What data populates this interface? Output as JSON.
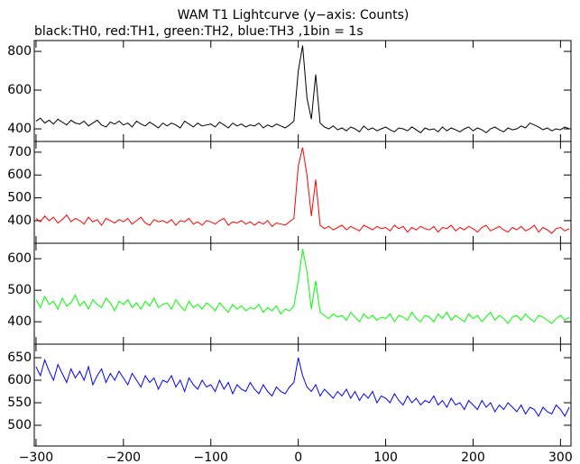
{
  "chart_data": {
    "type": "line",
    "title": "WAM T1 Lightcurve (y−axis: Counts)",
    "subtitle": "black:TH0, red:TH1, green:TH2, blue:TH3 ,1bin = 1s",
    "x": [
      -300,
      -295,
      -290,
      -285,
      -280,
      -275,
      -270,
      -265,
      -260,
      -255,
      -250,
      -245,
      -240,
      -235,
      -230,
      -225,
      -220,
      -215,
      -210,
      -205,
      -200,
      -195,
      -190,
      -185,
      -180,
      -175,
      -170,
      -165,
      -160,
      -155,
      -150,
      -145,
      -140,
      -135,
      -130,
      -125,
      -120,
      -115,
      -110,
      -105,
      -100,
      -95,
      -90,
      -85,
      -80,
      -75,
      -70,
      -65,
      -60,
      -55,
      -50,
      -45,
      -40,
      -35,
      -30,
      -25,
      -20,
      -15,
      -10,
      -5,
      0,
      5,
      10,
      15,
      20,
      25,
      30,
      35,
      40,
      45,
      50,
      55,
      60,
      65,
      70,
      75,
      80,
      85,
      90,
      95,
      100,
      105,
      110,
      115,
      120,
      125,
      130,
      135,
      140,
      145,
      150,
      155,
      160,
      165,
      170,
      175,
      180,
      185,
      190,
      195,
      200,
      205,
      210,
      215,
      220,
      225,
      230,
      235,
      240,
      245,
      250,
      255,
      260,
      265,
      270,
      275,
      280,
      285,
      290,
      295,
      300,
      305,
      310
    ],
    "xlim": [
      -302,
      312
    ],
    "xticks": [
      {
        "value": -300,
        "label": "−300"
      },
      {
        "value": -200,
        "label": "−200"
      },
      {
        "value": -100,
        "label": "−100"
      },
      0,
      100,
      200,
      300
    ],
    "series": [
      {
        "color": "#000000",
        "ylim": [
          335,
          856
        ],
        "yticks": [
          400,
          600,
          800
        ],
        "values": [
          440,
          455,
          430,
          445,
          425,
          450,
          435,
          420,
          445,
          430,
          425,
          440,
          415,
          430,
          445,
          420,
          410,
          435,
          425,
          440,
          420,
          430,
          410,
          440,
          425,
          415,
          435,
          420,
          405,
          430,
          415,
          430,
          420,
          405,
          440,
          425,
          410,
          430,
          415,
          420,
          425,
          410,
          435,
          420,
          405,
          430,
          415,
          425,
          410,
          420,
          415,
          430,
          405,
          420,
          410,
          425,
          415,
          405,
          420,
          440,
          700,
          830,
          560,
          450,
          680,
          430,
          410,
          400,
          415,
          395,
          405,
          390,
          410,
          400,
          385,
          415,
          395,
          405,
          390,
          400,
          410,
          395,
          385,
          405,
          400,
          390,
          410,
          395,
          380,
          405,
          395,
          400,
          385,
          410,
          390,
          405,
          395,
          385,
          400,
          410,
          390,
          405,
          395,
          380,
          400,
          410,
          395,
          385,
          405,
          395,
          400,
          415,
          405,
          430,
          420,
          410,
          395,
          405,
          390,
          400,
          395,
          410,
          400
        ]
      },
      {
        "color": "#ff0000",
        "ylim": [
          301,
          747
        ],
        "yticks": [
          400,
          500,
          600,
          700
        ],
        "values": [
          410,
          395,
          420,
          400,
          415,
          390,
          405,
          425,
          395,
          410,
          400,
          385,
          415,
          395,
          405,
          380,
          410,
          400,
          390,
          405,
          395,
          410,
          385,
          400,
          415,
          390,
          380,
          405,
          395,
          400,
          390,
          405,
          380,
          400,
          395,
          410,
          385,
          395,
          380,
          400,
          395,
          385,
          400,
          410,
          380,
          395,
          390,
          400,
          385,
          395,
          380,
          395,
          385,
          400,
          375,
          390,
          385,
          380,
          395,
          410,
          640,
          720,
          600,
          420,
          580,
          380,
          365,
          375,
          360,
          370,
          380,
          360,
          375,
          365,
          355,
          380,
          370,
          360,
          375,
          365,
          370,
          355,
          380,
          365,
          375,
          350,
          370,
          360,
          375,
          365,
          360,
          375,
          350,
          370,
          365,
          380,
          355,
          370,
          360,
          375,
          365,
          350,
          370,
          380,
          355,
          365,
          375,
          360,
          350,
          370,
          360,
          375,
          355,
          365,
          380,
          350,
          370,
          360,
          345,
          365,
          370,
          355,
          365
        ]
      },
      {
        "color": "#00ff00",
        "ylim": [
          329,
          649
        ],
        "yticks": [
          400,
          500,
          600
        ],
        "values": [
          470,
          445,
          480,
          455,
          465,
          440,
          475,
          450,
          460,
          485,
          450,
          465,
          440,
          470,
          455,
          445,
          475,
          460,
          435,
          465,
          455,
          470,
          445,
          460,
          440,
          465,
          450,
          475,
          445,
          455,
          460,
          440,
          470,
          450,
          435,
          465,
          445,
          455,
          440,
          460,
          450,
          435,
          460,
          445,
          430,
          455,
          440,
          450,
          435,
          445,
          440,
          455,
          430,
          445,
          435,
          450,
          425,
          440,
          435,
          450,
          530,
          630,
          560,
          440,
          530,
          430,
          420,
          410,
          425,
          415,
          420,
          405,
          430,
          415,
          400,
          425,
          410,
          420,
          405,
          415,
          410,
          425,
          400,
          420,
          415,
          405,
          430,
          410,
          400,
          420,
          415,
          400,
          425,
          410,
          430,
          405,
          420,
          410,
          400,
          425,
          410,
          420,
          400,
          415,
          430,
          405,
          420,
          410,
          395,
          415,
          420,
          405,
          425,
          410,
          400,
          420,
          415,
          405,
          395,
          410,
          420,
          405,
          415
        ]
      },
      {
        "color": "#0000ff",
        "ylim": [
          454,
          680
        ],
        "yticks": [
          500,
          550,
          600,
          650
        ],
        "values": [
          630,
          610,
          645,
          620,
          600,
          635,
          615,
          595,
          625,
          605,
          620,
          600,
          630,
          590,
          610,
          625,
          595,
          615,
          600,
          620,
          605,
          590,
          615,
          600,
          585,
          610,
          595,
          605,
          580,
          600,
          595,
          610,
          585,
          600,
          575,
          605,
          590,
          580,
          600,
          585,
          590,
          575,
          600,
          580,
          595,
          570,
          590,
          580,
          575,
          595,
          580,
          570,
          590,
          575,
          565,
          585,
          575,
          570,
          585,
          595,
          650,
          610,
          585,
          575,
          590,
          565,
          580,
          570,
          560,
          575,
          565,
          580,
          560,
          575,
          555,
          570,
          560,
          575,
          550,
          565,
          560,
          550,
          570,
          555,
          545,
          565,
          550,
          560,
          545,
          555,
          550,
          565,
          545,
          555,
          540,
          560,
          545,
          550,
          535,
          555,
          545,
          535,
          555,
          540,
          550,
          530,
          545,
          535,
          550,
          540,
          530,
          545,
          525,
          540,
          535,
          520,
          540,
          530,
          525,
          545,
          535,
          520,
          540
        ]
      }
    ]
  }
}
